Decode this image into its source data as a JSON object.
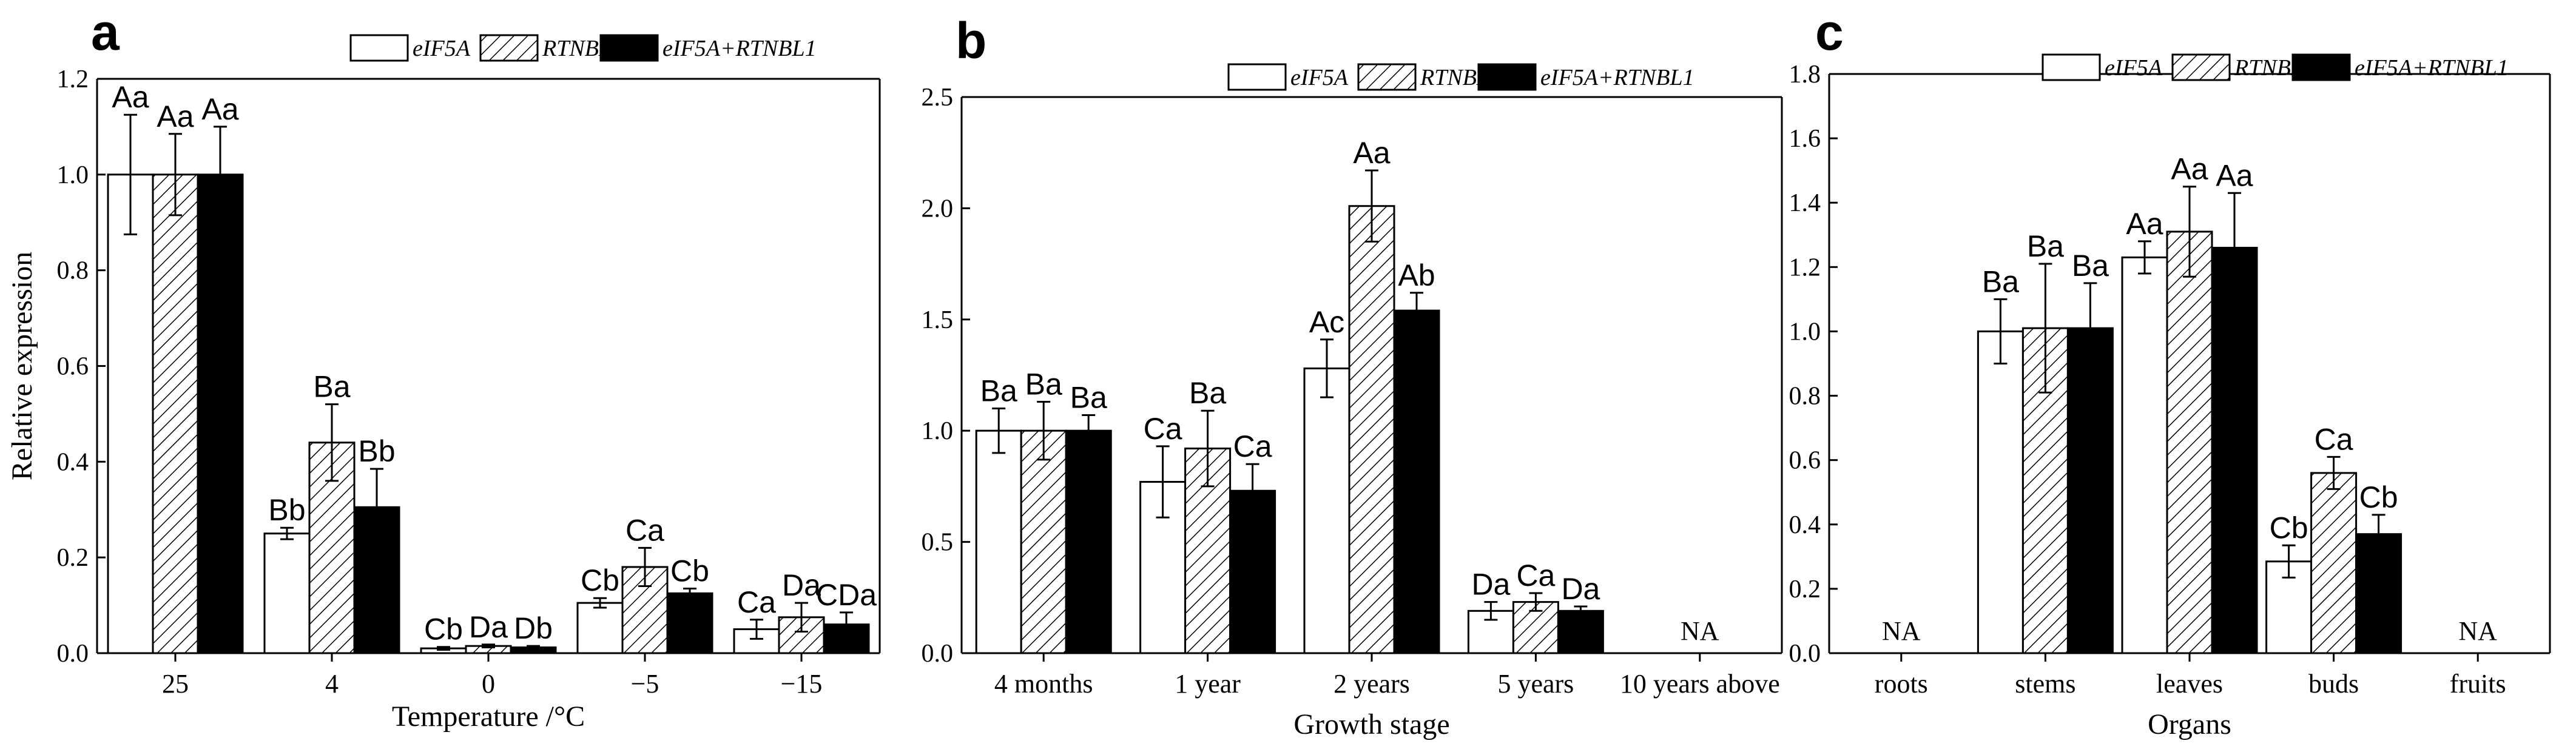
{
  "colors": {
    "axis": "#000000",
    "bar_open": "#ffffff",
    "bar_solid": "#000000"
  },
  "series_styles": [
    {
      "name": "eIF5A",
      "style": "open"
    },
    {
      "name": "RTNBL1",
      "style": "hatched"
    },
    {
      "name": "eIF5A+RTNBL1",
      "style": "solid"
    }
  ],
  "chart_data": [
    {
      "panel": "a",
      "type": "bar",
      "xlabel": "Temperature /°C",
      "ylabel": "Relative expression",
      "categories": [
        "25",
        "4",
        "0",
        "−5",
        "−15"
      ],
      "ylim": [
        0,
        1.2
      ],
      "yticks": [
        "0.0",
        "0.2",
        "0.4",
        "0.6",
        "0.8",
        "1.0",
        "1.2"
      ],
      "legend_position": "top-right",
      "series": [
        {
          "name": "eIF5A",
          "values": [
            1.0,
            0.25,
            0.01,
            0.105,
            0.05
          ],
          "errors": [
            0.125,
            0.012,
            0.003,
            0.01,
            0.02
          ],
          "labels": [
            "Aa",
            "Bb",
            "Cb",
            "Cb",
            "Ca"
          ]
        },
        {
          "name": "RTNBL1",
          "values": [
            1.0,
            0.44,
            0.015,
            0.18,
            0.075
          ],
          "errors": [
            0.085,
            0.08,
            0.003,
            0.04,
            0.03
          ],
          "labels": [
            "Aa",
            "Ba",
            "Da",
            "Ca",
            "Da"
          ]
        },
        {
          "name": "eIF5A+RTNBL1",
          "values": [
            1.0,
            0.305,
            0.012,
            0.125,
            0.06
          ],
          "errors": [
            0.1,
            0.08,
            0.003,
            0.01,
            0.025
          ],
          "labels": [
            "Aa",
            "Bb",
            "Db",
            "Cb",
            "CDa"
          ]
        }
      ],
      "annotations": []
    },
    {
      "panel": "b",
      "type": "bar",
      "xlabel": "Growth stage",
      "ylabel": "",
      "categories": [
        "4 months",
        "1 year",
        "2 years",
        "5 years",
        "10 years above"
      ],
      "ylim": [
        0,
        2.5
      ],
      "yticks": [
        "0.0",
        "0.5",
        "1.0",
        "1.5",
        "2.0",
        "2.5"
      ],
      "legend_position": "top-right",
      "series": [
        {
          "name": "eIF5A",
          "values": [
            1.0,
            0.77,
            1.28,
            0.19,
            null
          ],
          "errors": [
            0.1,
            0.16,
            0.13,
            0.04,
            null
          ],
          "labels": [
            "Ba",
            "Ca",
            "Ac",
            "Da",
            ""
          ]
        },
        {
          "name": "RTNBL1",
          "values": [
            1.0,
            0.92,
            2.01,
            0.23,
            null
          ],
          "errors": [
            0.13,
            0.17,
            0.16,
            0.04,
            null
          ],
          "labels": [
            "Ba",
            "Ba",
            "Aa",
            "Ca",
            ""
          ]
        },
        {
          "name": "eIF5A+RTNBL1",
          "values": [
            1.0,
            0.73,
            1.54,
            0.19,
            null
          ],
          "errors": [
            0.07,
            0.12,
            0.08,
            0.02,
            null
          ],
          "labels": [
            "Ba",
            "Ca",
            "Ab",
            "Da",
            ""
          ]
        }
      ],
      "annotations": [
        {
          "category": 4,
          "text": "NA"
        }
      ]
    },
    {
      "panel": "c",
      "type": "bar",
      "xlabel": "Organs",
      "ylabel": "",
      "categories": [
        "roots",
        "stems",
        "leaves",
        "buds",
        "fruits"
      ],
      "ylim": [
        0,
        1.8
      ],
      "yticks": [
        "0.0",
        "0.2",
        "0.4",
        "0.6",
        "0.8",
        "1.0",
        "1.2",
        "1.4",
        "1.6",
        "1.8"
      ],
      "legend_position": "top-right",
      "series": [
        {
          "name": "eIF5A",
          "values": [
            null,
            1.0,
            1.23,
            0.285,
            null
          ],
          "errors": [
            null,
            0.1,
            0.05,
            0.05,
            null
          ],
          "labels": [
            "",
            "Ba",
            "Aa",
            "Cb",
            ""
          ]
        },
        {
          "name": "RTNBL1",
          "values": [
            null,
            1.01,
            1.31,
            0.56,
            null
          ],
          "errors": [
            null,
            0.2,
            0.14,
            0.05,
            null
          ],
          "labels": [
            "",
            "Ba",
            "Aa",
            "Ca",
            ""
          ]
        },
        {
          "name": "eIF5A+RTNBL1",
          "values": [
            null,
            1.01,
            1.26,
            0.37,
            null
          ],
          "errors": [
            null,
            0.14,
            0.17,
            0.06,
            null
          ],
          "labels": [
            "",
            "Ba",
            "Aa",
            "Cb",
            ""
          ]
        }
      ],
      "annotations": [
        {
          "category": 0,
          "text": "NA"
        },
        {
          "category": 4,
          "text": "NA"
        }
      ]
    }
  ]
}
